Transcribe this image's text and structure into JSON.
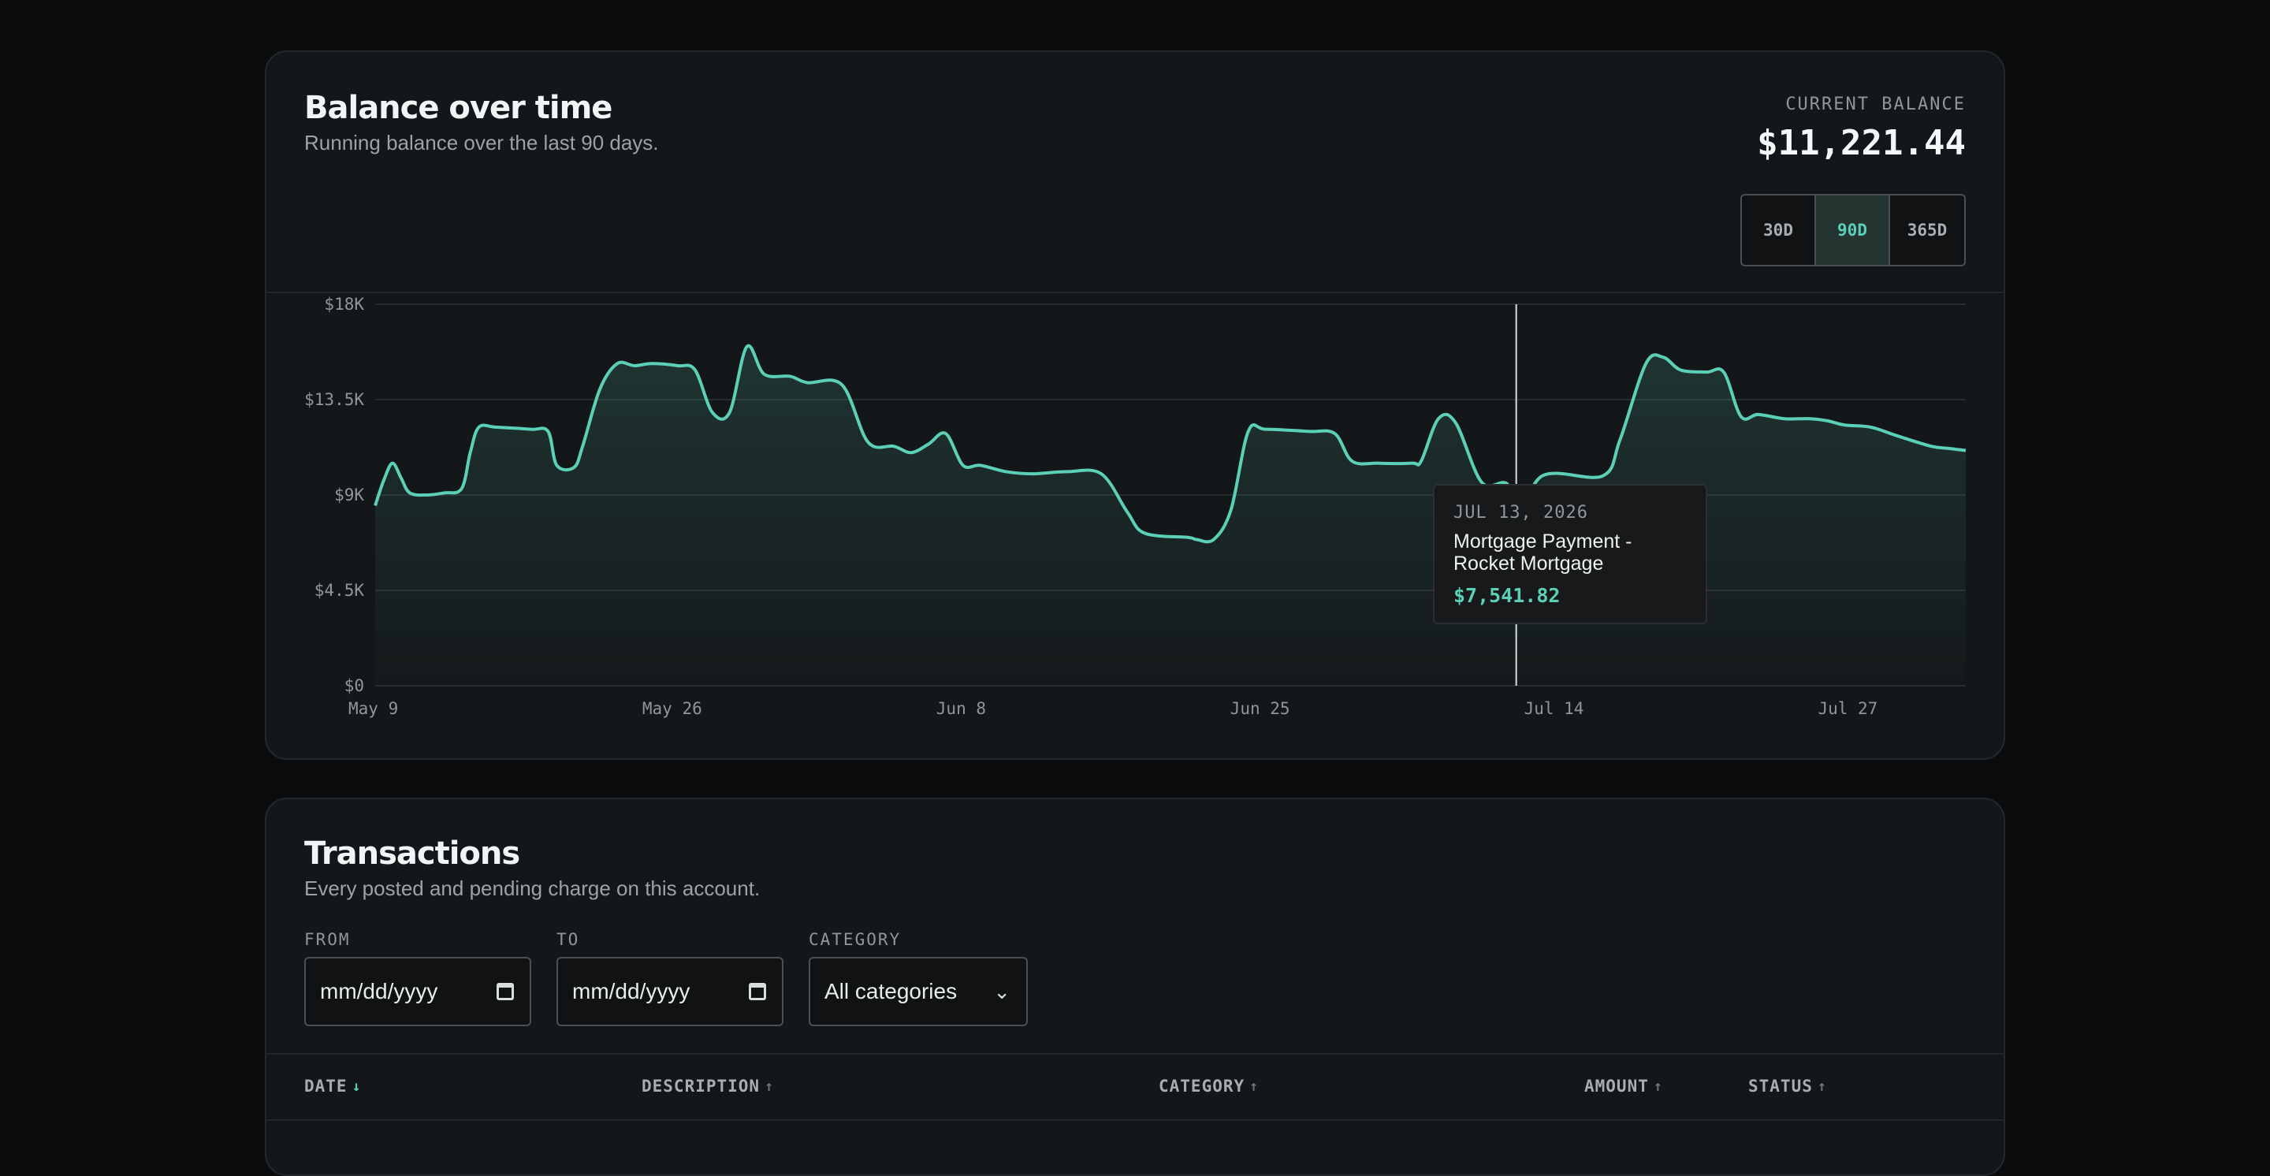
{
  "balance_card": {
    "title": "Balance over time",
    "subtitle": "Running balance over the last 90 days.",
    "current_balance_label": "CURRENT BALANCE",
    "current_balance_value": "$11,221.44",
    "range_options": [
      "30D",
      "90D",
      "365D"
    ],
    "selected_range": "90D",
    "tooltip": {
      "date": "JUL 13, 2026",
      "description": "Mortgage Payment - Rocket Mortgage",
      "amount": "$7,541.82"
    }
  },
  "chart_data": {
    "type": "area",
    "title": "",
    "xlabel": "",
    "ylabel": "",
    "ylim": [
      0,
      18000
    ],
    "y_ticks": [
      "$0",
      "$4.5K",
      "$9K",
      "$13.5K",
      "$18K"
    ],
    "x_ticks": [
      "May 9",
      "May 26",
      "Jun 8",
      "Jun 25",
      "Jul 14",
      "Jul 27"
    ],
    "x_tick_days": [
      0,
      17,
      34,
      51,
      68,
      85
    ],
    "grid": true,
    "highlighted_day": 66,
    "series": [
      {
        "color": "#5bd0b7",
        "points": [
          [
            0,
            8500
          ],
          [
            0.5,
            9700
          ],
          [
            1,
            10500
          ],
          [
            1.5,
            9800
          ],
          [
            2,
            9100
          ],
          [
            3,
            9000
          ],
          [
            4,
            9100
          ],
          [
            5,
            9300
          ],
          [
            5.5,
            11000
          ],
          [
            6,
            12200
          ],
          [
            7,
            12200
          ],
          [
            9,
            12100
          ],
          [
            10,
            12000
          ],
          [
            10.5,
            10400
          ],
          [
            11.5,
            10300
          ],
          [
            12,
            11300
          ],
          [
            13,
            14000
          ],
          [
            14,
            15200
          ],
          [
            15,
            15100
          ],
          [
            16,
            15200
          ],
          [
            17.5,
            15100
          ],
          [
            18.5,
            14900
          ],
          [
            19.5,
            12900
          ],
          [
            20.5,
            12900
          ],
          [
            21.5,
            16000
          ],
          [
            22.5,
            14700
          ],
          [
            24,
            14600
          ],
          [
            25,
            14300
          ],
          [
            27,
            14200
          ],
          [
            28.5,
            11500
          ],
          [
            30,
            11300
          ],
          [
            31,
            11000
          ],
          [
            32,
            11400
          ],
          [
            33,
            11900
          ],
          [
            34,
            10400
          ],
          [
            35,
            10400
          ],
          [
            36.5,
            10100
          ],
          [
            38,
            10000
          ],
          [
            40,
            10100
          ],
          [
            42,
            10000
          ],
          [
            43.5,
            8200
          ],
          [
            44.5,
            7200
          ],
          [
            47,
            7000
          ],
          [
            47.5,
            6900
          ],
          [
            48.5,
            6900
          ],
          [
            49.5,
            8300
          ],
          [
            50.5,
            12000
          ],
          [
            51.5,
            12100
          ],
          [
            54,
            12000
          ],
          [
            55.5,
            11900
          ],
          [
            56.5,
            10600
          ],
          [
            58,
            10500
          ],
          [
            60,
            10500
          ],
          [
            60.5,
            10600
          ],
          [
            61.5,
            12600
          ],
          [
            62.5,
            12400
          ],
          [
            64,
            9600
          ],
          [
            65.5,
            9500
          ],
          [
            66,
            7600
          ],
          [
            67.5,
            9900
          ],
          [
            71,
            9900
          ],
          [
            72,
            11600
          ],
          [
            73.5,
            15200
          ],
          [
            74.5,
            15500
          ],
          [
            75.5,
            14900
          ],
          [
            77,
            14800
          ],
          [
            78,
            14800
          ],
          [
            79,
            12700
          ],
          [
            80,
            12800
          ],
          [
            81.5,
            12600
          ],
          [
            83,
            12600
          ],
          [
            84,
            12500
          ],
          [
            85,
            12300
          ],
          [
            86.5,
            12200
          ],
          [
            88,
            11800
          ],
          [
            90,
            11300
          ],
          [
            91,
            11200
          ],
          [
            92,
            11100
          ]
        ]
      }
    ]
  },
  "transactions_card": {
    "title": "Transactions",
    "subtitle": "Every posted and pending charge on this account.",
    "from_label": "FROM",
    "from_placeholder": "mm/dd/yyyy",
    "to_label": "TO",
    "to_placeholder": "mm/dd/yyyy",
    "category_label": "CATEGORY",
    "category_value": "All categories",
    "columns": [
      {
        "label": "DATE",
        "sort": "↓"
      },
      {
        "label": "DESCRIPTION",
        "sort": "↑"
      },
      {
        "label": "CATEGORY",
        "sort": "↑"
      },
      {
        "label": "AMOUNT",
        "sort": "↑"
      },
      {
        "label": "STATUS",
        "sort": "↑"
      }
    ]
  }
}
